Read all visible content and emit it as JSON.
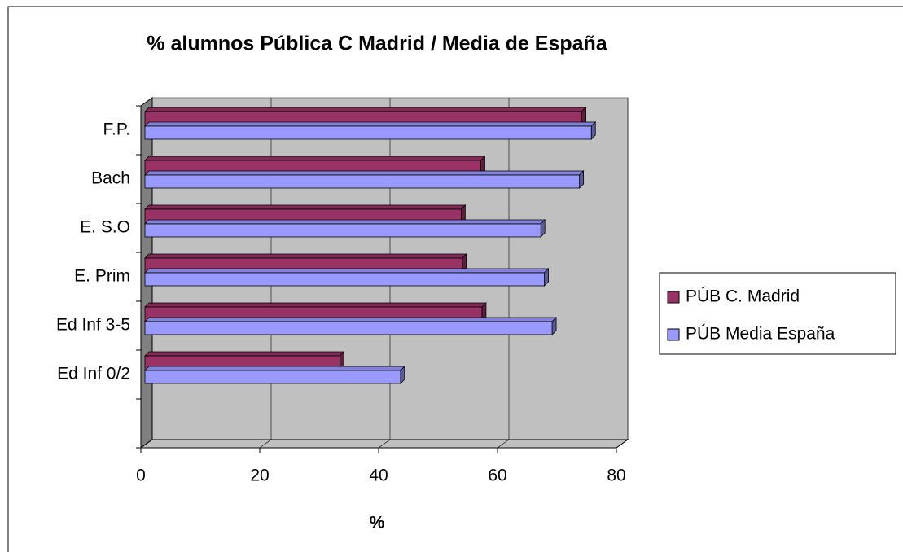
{
  "chart_data": {
    "type": "bar",
    "orientation": "horizontal",
    "title": "% alumnos Pública C Madrid / Media de España",
    "x_label": "%",
    "categories": [
      null,
      "Ed Inf 0/2",
      "Ed Inf 3-5",
      "E. Prim",
      "E. S.O",
      "Bach",
      "F.P."
    ],
    "series": [
      {
        "name": "PÚB C. Madrid",
        "color": "#993366",
        "values": [
          null,
          32.8,
          56.7,
          53.4,
          53.2,
          56.5,
          73.5
        ]
      },
      {
        "name": "PÚB Media España",
        "color": "#9999ff",
        "values": [
          null,
          43,
          68.5,
          67.2,
          66.6,
          73.1,
          75.1
        ]
      }
    ],
    "xlim": [
      0,
      80
    ],
    "xticks": [
      0,
      20,
      40,
      60,
      80
    ],
    "grid": true,
    "legend": "right"
  }
}
